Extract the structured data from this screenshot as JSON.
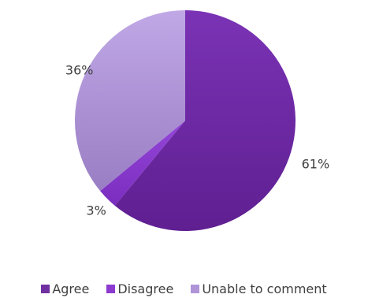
{
  "chart_data": {
    "type": "pie",
    "title": "",
    "categories": [
      "Agree",
      "Disagree",
      "Unable to comment"
    ],
    "values": [
      61,
      3,
      36
    ],
    "labels": [
      "61%",
      "3%",
      "36%"
    ],
    "colors": [
      "#7030a0",
      "#8c3ad0",
      "#b094d8"
    ],
    "start": "top",
    "direction": "clockwise",
    "legend_position": "bottom"
  }
}
